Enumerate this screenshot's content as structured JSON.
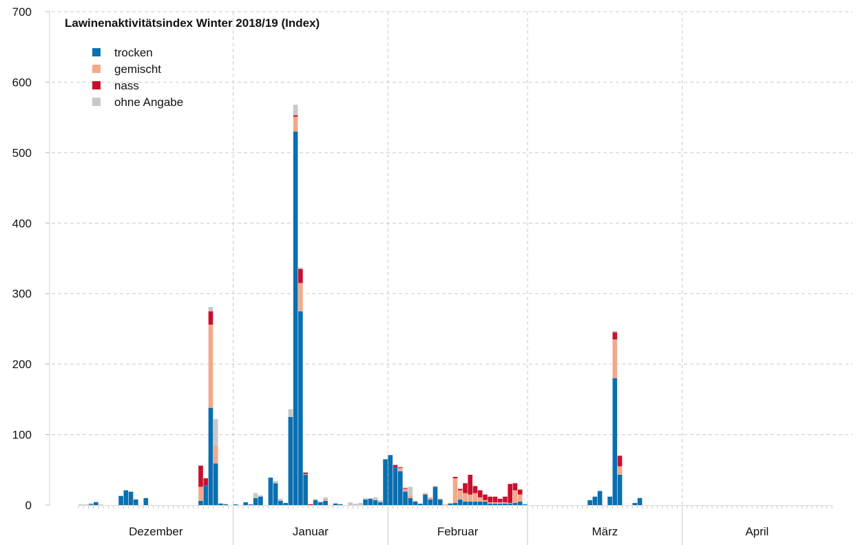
{
  "chart_data": {
    "type": "bar",
    "stacked": true,
    "title": "Lawinenaktivitätsindex Winter 2018/19 (Index)",
    "xlabel": "",
    "ylabel": "",
    "ylim": [
      0,
      700
    ],
    "yticks": [
      0,
      100,
      200,
      300,
      400,
      500,
      600,
      700
    ],
    "grid": true,
    "legend_position": "top-left",
    "months": [
      {
        "label": "Dezember",
        "days": 31
      },
      {
        "label": "Januar",
        "days": 31
      },
      {
        "label": "Februar",
        "days": 28
      },
      {
        "label": "März",
        "days": 31
      },
      {
        "label": "April",
        "days": 30
      }
    ],
    "series": [
      {
        "name": "trocken",
        "color": "#0a6fb0",
        "values": [
          0,
          0,
          1,
          4,
          0,
          0,
          0,
          0,
          13,
          21,
          19,
          8,
          0,
          10,
          0,
          0,
          0,
          0,
          0,
          0,
          0,
          0,
          0,
          0,
          6,
          28,
          138,
          59,
          2,
          1,
          0,
          1,
          0,
          4,
          1,
          10,
          12,
          0,
          39,
          31,
          6,
          3,
          125,
          530,
          275,
          43,
          0,
          7,
          4,
          6,
          0,
          2,
          1,
          0,
          0,
          0,
          0,
          8,
          9,
          7,
          4,
          65,
          71,
          54,
          48,
          19,
          10,
          5,
          2,
          15,
          8,
          26,
          8,
          0,
          2,
          3,
          8,
          5,
          5,
          5,
          5,
          5,
          2,
          2,
          2,
          2,
          2,
          3,
          5,
          1,
          0,
          0,
          0,
          0,
          0,
          0,
          0,
          0,
          0,
          0,
          0,
          0,
          7,
          12,
          20,
          0,
          12,
          180,
          43,
          0,
          0,
          3,
          10,
          0,
          0,
          0,
          0,
          0,
          0,
          0,
          0,
          0,
          0,
          0,
          0,
          0,
          0,
          0,
          0,
          0,
          0,
          0,
          0,
          0,
          0,
          0,
          0,
          0,
          0,
          0,
          0,
          0,
          0,
          0,
          0,
          0,
          0,
          0,
          0,
          0,
          0,
          0,
          0,
          0,
          0
        ]
      },
      {
        "name": "gemischt",
        "color": "#f2a98a",
        "values": [
          0,
          0,
          0,
          0,
          0,
          0,
          0,
          0,
          0,
          0,
          0,
          0,
          0,
          0,
          0,
          0,
          0,
          0,
          0,
          0,
          0,
          0,
          0,
          0,
          20,
          0,
          118,
          25,
          0,
          0,
          0,
          0,
          0,
          0,
          0,
          0,
          0,
          0,
          0,
          0,
          0,
          0,
          0,
          21,
          40,
          1,
          0,
          0,
          0,
          3,
          0,
          0,
          0,
          0,
          0,
          0,
          0,
          0,
          0,
          0,
          0,
          0,
          0,
          0,
          5,
          4,
          4,
          1,
          0,
          2,
          3,
          1,
          1,
          1,
          1,
          35,
          13,
          12,
          10,
          12,
          6,
          2,
          2,
          2,
          2,
          2,
          1,
          18,
          10,
          0,
          0,
          0,
          0,
          0,
          0,
          0,
          0,
          0,
          0,
          0,
          0,
          0,
          0,
          0,
          0,
          0,
          0,
          55,
          12,
          0,
          0,
          0,
          0,
          0,
          0,
          0,
          0,
          0,
          0,
          0,
          0,
          0,
          0,
          0,
          0,
          0,
          0,
          0,
          0,
          0,
          0,
          0,
          0,
          0,
          0,
          0,
          0,
          0,
          0,
          0,
          0,
          0,
          0,
          0,
          0,
          0,
          0,
          0,
          0,
          0,
          0,
          0,
          0,
          0,
          0
        ]
      },
      {
        "name": "nass",
        "color": "#c8102e",
        "values": [
          0,
          0,
          0,
          0,
          0,
          0,
          0,
          0,
          0,
          0,
          0,
          0,
          0,
          0,
          0,
          0,
          0,
          0,
          0,
          0,
          0,
          0,
          0,
          0,
          30,
          10,
          19,
          0,
          0,
          0,
          0,
          0,
          0,
          0,
          0,
          0,
          0,
          0,
          0,
          0,
          0,
          0,
          0,
          2,
          20,
          2,
          1,
          0,
          0,
          0,
          0,
          0,
          0,
          0,
          0,
          0,
          0,
          0,
          0,
          0,
          0,
          0,
          0,
          3,
          1,
          1,
          0,
          0,
          0,
          0,
          0,
          0,
          0,
          0,
          0,
          2,
          2,
          14,
          28,
          10,
          10,
          8,
          8,
          8,
          5,
          8,
          27,
          10,
          7,
          0,
          0,
          0,
          0,
          0,
          0,
          0,
          0,
          0,
          0,
          0,
          0,
          0,
          0,
          0,
          0,
          0,
          0,
          10,
          15,
          0,
          0,
          0,
          0,
          0,
          0,
          0,
          0,
          0,
          0,
          0,
          0,
          0,
          0,
          0,
          0,
          0,
          0,
          0,
          0,
          0,
          0,
          0,
          0,
          0,
          0,
          0,
          0,
          0,
          0,
          0,
          0,
          0,
          0,
          0,
          0,
          0,
          0,
          0,
          0,
          0,
          0,
          0,
          0,
          0,
          0
        ]
      },
      {
        "name": "ohne Angabe",
        "color": "#c8c8c8",
        "values": [
          1,
          1,
          2,
          1,
          1,
          0,
          0,
          0,
          0,
          0,
          0,
          0,
          0,
          0,
          0,
          0,
          0,
          0,
          0,
          0,
          0,
          0,
          0,
          0,
          0,
          0,
          6,
          38,
          1,
          1,
          0,
          0,
          0,
          0,
          0,
          7,
          2,
          0,
          0,
          3,
          3,
          0,
          11,
          15,
          2,
          1,
          1,
          2,
          1,
          2,
          0,
          1,
          1,
          0,
          4,
          2,
          3,
          2,
          1,
          4,
          3,
          0,
          0,
          0,
          0,
          1,
          12,
          0,
          0,
          0,
          0,
          0,
          0,
          0,
          0,
          0,
          0,
          0,
          0,
          0,
          0,
          0,
          0,
          0,
          0,
          0,
          0,
          0,
          0,
          0,
          0,
          0,
          0,
          0,
          0,
          0,
          0,
          0,
          0,
          0,
          0,
          0,
          0,
          0,
          0,
          0,
          0,
          2,
          0,
          0,
          0,
          0,
          0,
          0,
          0,
          0,
          0,
          0,
          0,
          0,
          0,
          0,
          0,
          0,
          0,
          0,
          0,
          0,
          0,
          0,
          0,
          0,
          0,
          0,
          0,
          0,
          0,
          0,
          0,
          0,
          0,
          0,
          0,
          0,
          0,
          0,
          0,
          0,
          0,
          0,
          0,
          0,
          0,
          0,
          0
        ]
      }
    ]
  }
}
